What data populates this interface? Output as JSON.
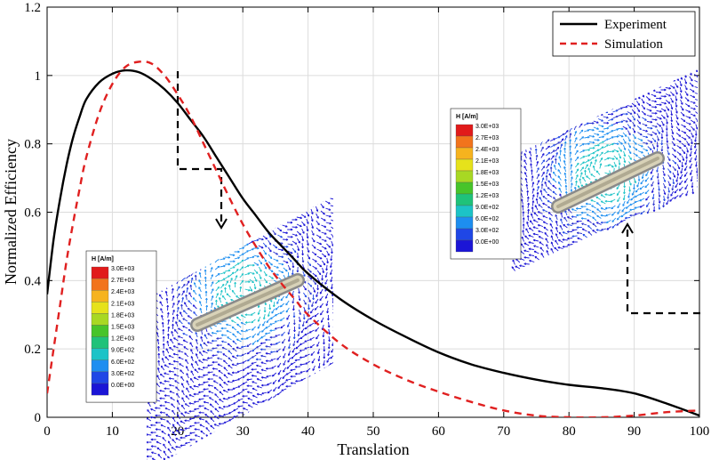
{
  "chart_data": {
    "type": "line",
    "title": "",
    "xlabel": "Translation",
    "ylabel": "Normalized Efficiency",
    "xlim": [
      0,
      100
    ],
    "ylim": [
      0,
      1.2
    ],
    "xticks": [
      "0",
      "10",
      "20",
      "30",
      "40",
      "50",
      "60",
      "70",
      "80",
      "90",
      "100"
    ],
    "yticks": [
      "0",
      "0.2",
      "0.4",
      "0.6",
      "0.8",
      "1",
      "1.2"
    ],
    "grid": true,
    "legend": "top-right",
    "series": [
      {
        "name": "Experiment",
        "color": "#000000",
        "style": "solid",
        "x": [
          0,
          1,
          2,
          3,
          4,
          5,
          6,
          8,
          10,
          12,
          14,
          16,
          18,
          20,
          22,
          24,
          26,
          28,
          30,
          32,
          34,
          36,
          38,
          40,
          45,
          50,
          55,
          60,
          65,
          70,
          75,
          80,
          85,
          90,
          95,
          100
        ],
        "values": [
          0.36,
          0.52,
          0.64,
          0.74,
          0.82,
          0.88,
          0.93,
          0.98,
          1.005,
          1.015,
          1.01,
          0.99,
          0.96,
          0.92,
          0.87,
          0.82,
          0.76,
          0.7,
          0.64,
          0.59,
          0.54,
          0.5,
          0.46,
          0.42,
          0.345,
          0.285,
          0.235,
          0.19,
          0.155,
          0.13,
          0.11,
          0.095,
          0.085,
          0.07,
          0.04,
          0.005
        ]
      },
      {
        "name": "Simulation",
        "color": "#e02020",
        "style": "dashed",
        "x": [
          0,
          1,
          2,
          3,
          4,
          5,
          6,
          8,
          10,
          12,
          14,
          16,
          18,
          20,
          22,
          24,
          26,
          28,
          30,
          32,
          34,
          36,
          38,
          40,
          45,
          50,
          55,
          60,
          65,
          70,
          75,
          80,
          85,
          90,
          95,
          100
        ],
        "values": [
          0.07,
          0.2,
          0.33,
          0.46,
          0.57,
          0.67,
          0.76,
          0.89,
          0.975,
          1.025,
          1.04,
          1.035,
          1.0,
          0.945,
          0.88,
          0.8,
          0.72,
          0.64,
          0.565,
          0.5,
          0.44,
          0.39,
          0.345,
          0.3,
          0.215,
          0.155,
          0.11,
          0.075,
          0.045,
          0.02,
          0.005,
          0.0,
          0.0,
          0.005,
          0.015,
          0.02
        ]
      }
    ],
    "annotations": [
      {
        "type": "field-plot-inset",
        "anchor_x": 20,
        "colorbar": {
          "title": "H [A/m]",
          "labels": [
            "3.0E+03",
            "2.7E+03",
            "2.4E+03",
            "2.1E+03",
            "1.8E+03",
            "1.5E+03",
            "1.2E+03",
            "9.0E+02",
            "6.0E+02",
            "3.0E+02",
            "0.0E+00"
          ],
          "colors": [
            "#e11a1a",
            "#f2741c",
            "#f6b31e",
            "#e6e21b",
            "#a8d823",
            "#47c42a",
            "#1fc27a",
            "#1cc3c7",
            "#1d8ef0",
            "#1f47e6",
            "#1b15d6"
          ]
        }
      },
      {
        "type": "field-plot-inset",
        "anchor_x": 100,
        "colorbar": {
          "title": "H [A/m]",
          "labels": [
            "3.0E+03",
            "2.7E+03",
            "2.4E+03",
            "2.1E+03",
            "1.8E+03",
            "1.5E+03",
            "1.2E+03",
            "9.0E+02",
            "6.0E+02",
            "3.0E+02",
            "0.0E+00"
          ],
          "colors": [
            "#e11a1a",
            "#f2741c",
            "#f6b31e",
            "#e6e21b",
            "#a8d823",
            "#47c42a",
            "#1fc27a",
            "#1cc3c7",
            "#1d8ef0",
            "#1f47e6",
            "#1b15d6"
          ]
        }
      }
    ]
  }
}
